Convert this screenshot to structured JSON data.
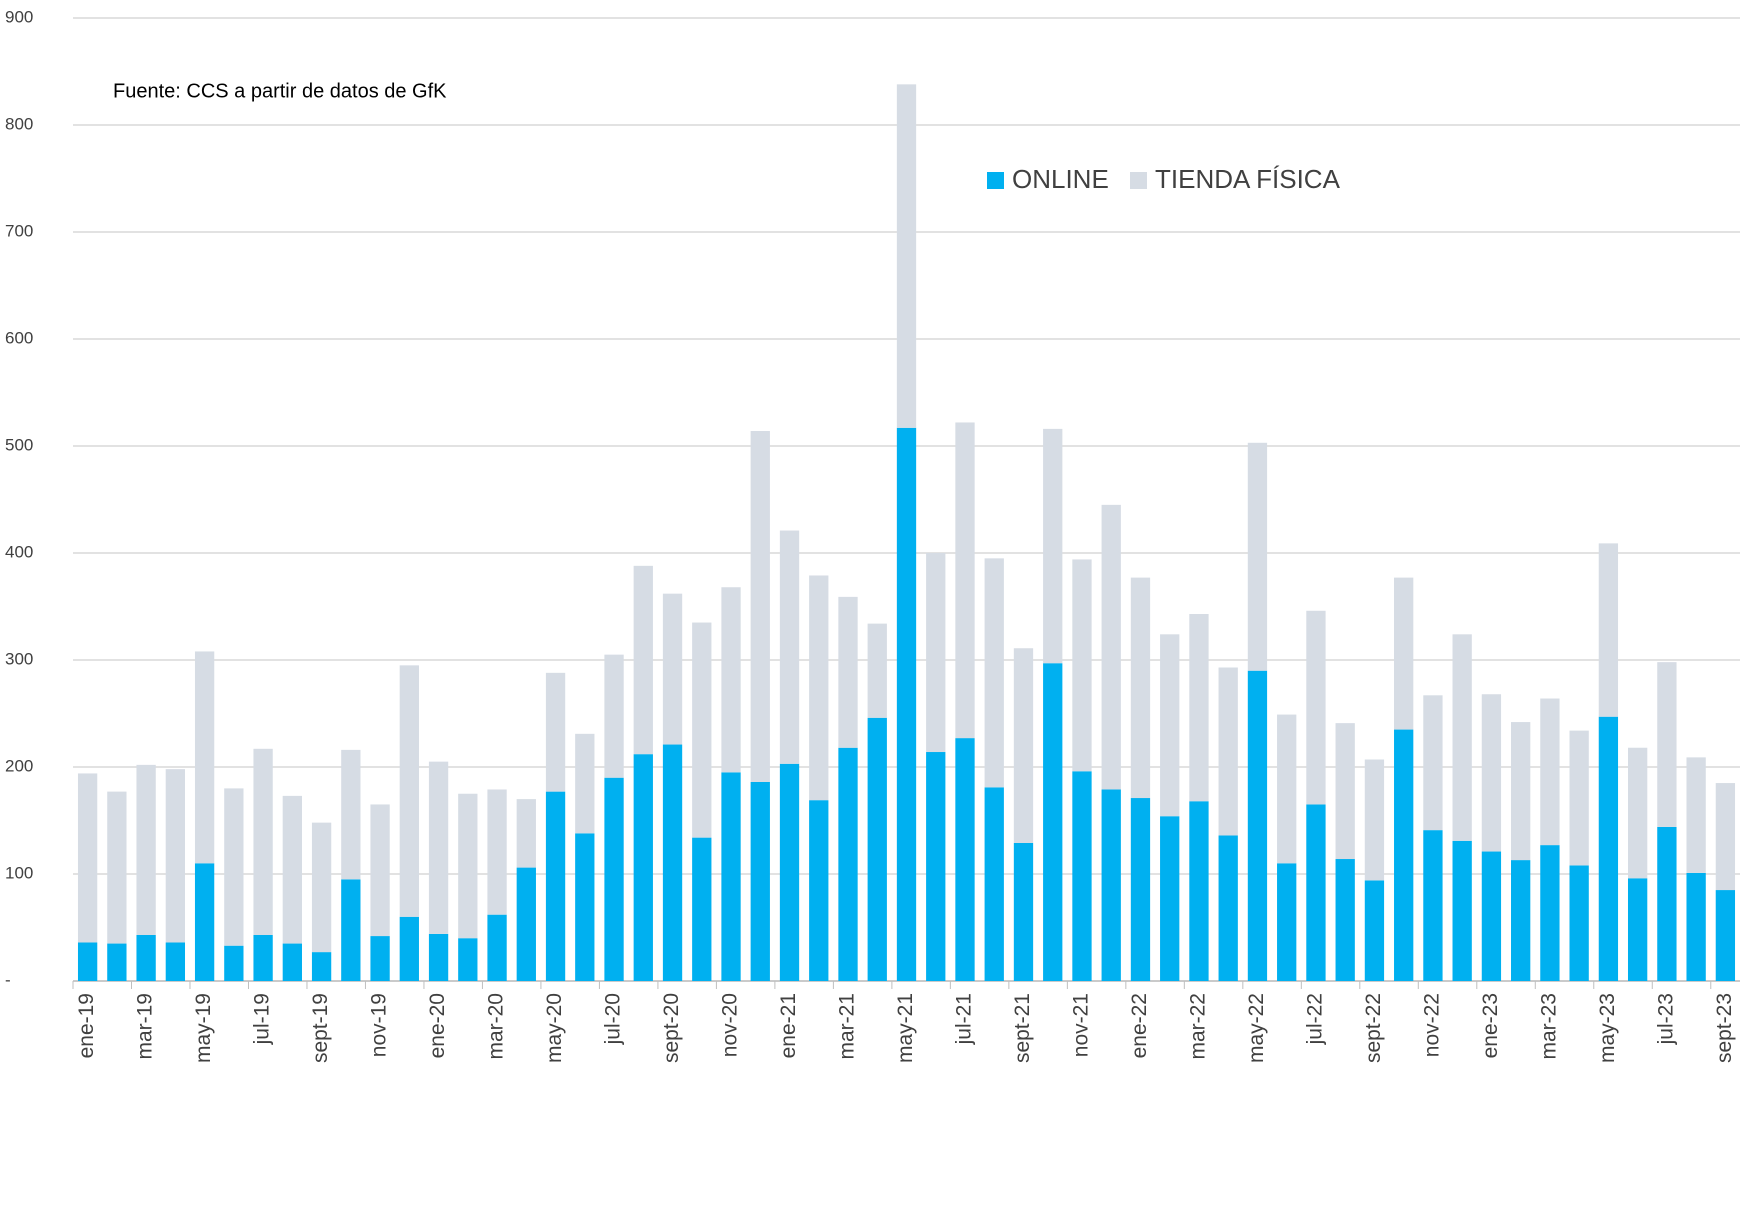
{
  "chart_data": {
    "type": "bar",
    "stacked": true,
    "annotation": "Fuente: CCS a partir de datos de GfK",
    "categories": [
      "ene-19",
      null,
      "mar-19",
      null,
      "may-19",
      null,
      "jul-19",
      null,
      "sept-19",
      null,
      "nov-19",
      null,
      "ene-20",
      null,
      "mar-20",
      null,
      "may-20",
      null,
      "jul-20",
      null,
      "sept-20",
      null,
      "nov-20",
      null,
      "ene-21",
      null,
      "mar-21",
      null,
      "may-21",
      null,
      "jul-21",
      null,
      "sept-21",
      null,
      "nov-21",
      null,
      "ene-22",
      null,
      "mar-22",
      null,
      "may-22",
      null,
      "jul-22",
      null,
      "sept-22",
      null,
      "nov-22",
      null,
      "ene-23",
      null,
      "mar-23",
      null,
      "may-23",
      null,
      "jul-23",
      null,
      "sept-23"
    ],
    "series": [
      {
        "name": "ONLINE",
        "color": "#00b0f0",
        "values": [
          36,
          35,
          43,
          36,
          110,
          33,
          43,
          35,
          27,
          95,
          42,
          60,
          44,
          40,
          62,
          106,
          177,
          138,
          190,
          212,
          221,
          134,
          195,
          186,
          203,
          169,
          218,
          246,
          517,
          214,
          227,
          181,
          129,
          297,
          196,
          179,
          171,
          154,
          168,
          136,
          290,
          110,
          165,
          114,
          94,
          235,
          141,
          131,
          121,
          113,
          127,
          108,
          247,
          96,
          144,
          101,
          85
        ]
      },
      {
        "name": "TIENDA FÍSICA",
        "color": "#d6dce4",
        "values": [
          158,
          142,
          159,
          162,
          198,
          147,
          174,
          138,
          121,
          121,
          123,
          235,
          161,
          135,
          117,
          64,
          111,
          93,
          115,
          176,
          141,
          201,
          173,
          328,
          218,
          210,
          141,
          88,
          321,
          186,
          295,
          214,
          182,
          219,
          198,
          266,
          206,
          170,
          175,
          157,
          213,
          139,
          181,
          127,
          113,
          142,
          126,
          193,
          147,
          129,
          137,
          126,
          162,
          122,
          154,
          108,
          100
        ]
      }
    ],
    "ylim": [
      0,
      900
    ],
    "yticks": [
      {
        "value": 0,
        "label": "-"
      },
      100,
      200,
      300,
      400,
      500,
      600,
      700,
      800,
      900
    ],
    "grid": true,
    "legend": "top-right"
  }
}
